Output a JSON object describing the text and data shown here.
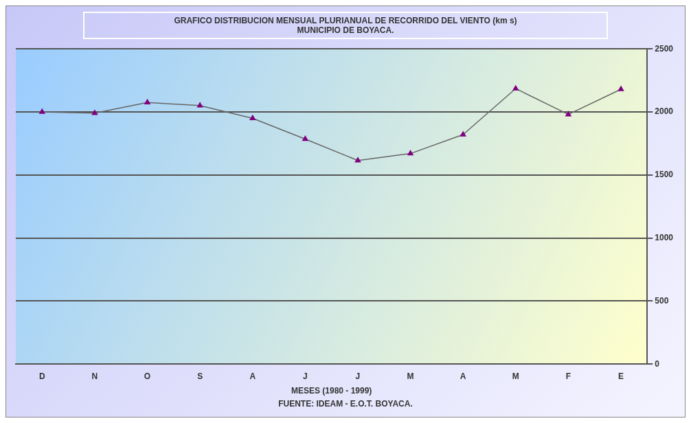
{
  "chart_data": {
    "type": "line",
    "title": "GRAFICO DISTRIBUCION MENSUAL PLURIANUAL DE RECORRIDO DEL VIENTO (km s)",
    "subtitle": "MUNICIPIO DE BOYACA.",
    "xlabel": "MESES (1980 - 1999)",
    "annotations": [
      "FUENTE: IDEAM - E.O.T. BOYACA."
    ],
    "categories": [
      "D",
      "N",
      "O",
      "S",
      "A",
      "J",
      "J",
      "M",
      "A",
      "M",
      "F",
      "E"
    ],
    "series": [
      {
        "color": "#666666",
        "values": [
          2000,
          1990,
          2075,
          2050,
          1950,
          1785,
          1615,
          1670,
          1820,
          2185,
          1980,
          2180
        ]
      }
    ],
    "ylim": [
      0,
      2500
    ],
    "yticks": [
      0,
      500,
      1000,
      1500,
      2000,
      2500
    ],
    "grid": "y",
    "legend": false,
    "marker": "triangle",
    "line_style": "solid"
  }
}
